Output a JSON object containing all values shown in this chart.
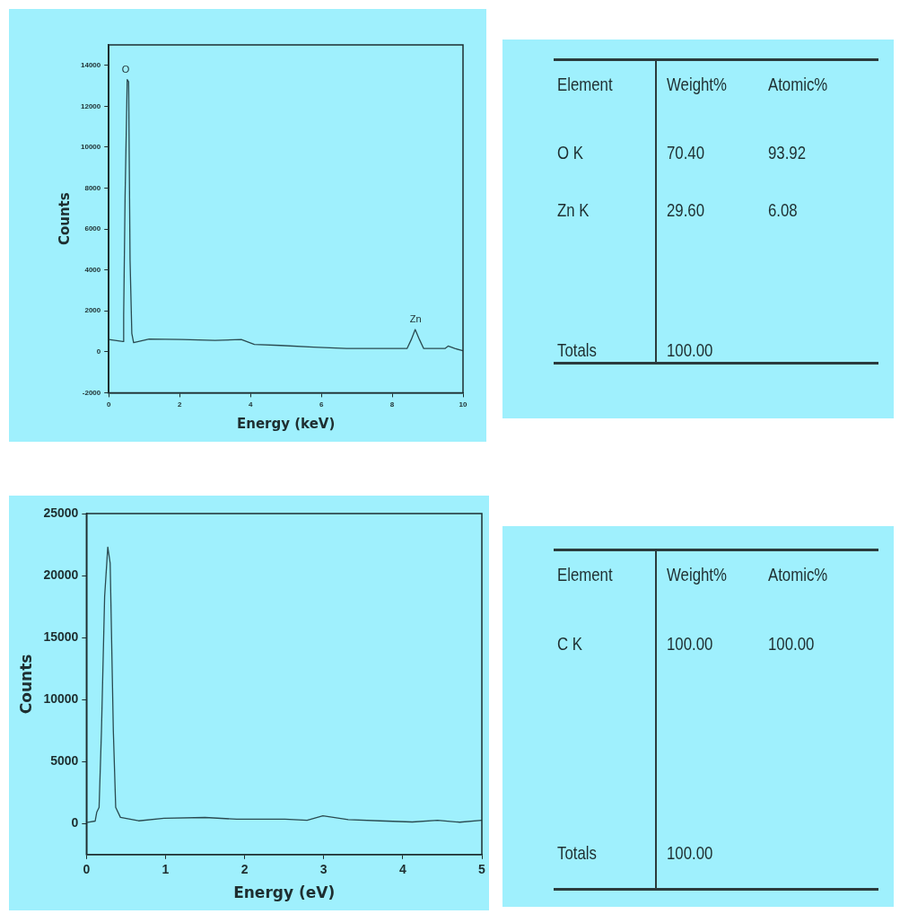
{
  "chart_data": [
    {
      "type": "line",
      "xlabel": "Energy (keV)",
      "ylabel": "Counts",
      "marker": "none",
      "xlim": [
        0,
        10
      ],
      "xticks": [
        0,
        2,
        4,
        6,
        8,
        10
      ],
      "ylim": [
        -2000,
        15000
      ],
      "yticks": [
        -2000,
        0,
        2000,
        4000,
        6000,
        8000,
        10000,
        12000,
        14000
      ],
      "x": [
        0,
        0.4,
        0.42,
        0.46,
        0.52,
        0.56,
        0.6,
        0.65,
        0.7,
        1.14,
        2.07,
        3.0,
        3.74,
        4.11,
        4.85,
        5.78,
        6.71,
        7.63,
        8.42,
        8.54,
        8.65,
        8.77,
        8.89,
        9.49,
        9.58,
        9.77,
        10
      ],
      "series": [
        {
          "color": "#2a4a50",
          "values": [
            600,
            500,
            1800,
            7600,
            13300,
            13200,
            4500,
            900,
            450,
            620,
            600,
            560,
            600,
            360,
            310,
            230,
            160,
            160,
            160,
            600,
            1090,
            600,
            160,
            160,
            280,
            160,
            50
          ]
        }
      ],
      "annotations": [
        {
          "text": "O",
          "x": 0.52,
          "y": 13300
        },
        {
          "text": "Zn",
          "x": 8.65,
          "y": 1090
        }
      ]
    },
    {
      "type": "other",
      "ylabel": "Element",
      "categories": [
        "O K",
        "Zn K",
        "Totals"
      ],
      "series": [
        {
          "name": "Weight%",
          "values": [
            70.4,
            29.6,
            100
          ],
          "value_labels": [
            "70.40",
            "29.60",
            "100.00"
          ]
        },
        {
          "name": "Atomic%",
          "values": [
            93.92,
            6.08,
            null
          ],
          "value_labels": [
            "93.92",
            "6.08",
            null
          ]
        }
      ]
    },
    {
      "type": "line",
      "xlabel": "Energy (eV)",
      "ylabel": "Counts",
      "marker": "none",
      "xlim": [
        0,
        5
      ],
      "xticks": [
        0,
        1,
        2,
        3,
        4,
        5
      ],
      "ylim": [
        -2500,
        25000
      ],
      "yticks": [
        0,
        5000,
        10000,
        15000,
        20000,
        25000
      ],
      "x": [
        0,
        0.11,
        0.13,
        0.16,
        0.19,
        0.23,
        0.27,
        0.3,
        0.34,
        0.37,
        0.43,
        0.66,
        0.98,
        1.5,
        1.9,
        2.51,
        2.79,
        2.99,
        3.31,
        3.71,
        4.12,
        4.44,
        4.72,
        5.0
      ],
      "series": [
        {
          "color": "#2a4a50",
          "values": [
            80,
            200,
            900,
            1300,
            7500,
            18300,
            22300,
            21000,
            7500,
            1300,
            500,
            220,
            430,
            490,
            350,
            350,
            270,
            620,
            320,
            220,
            130,
            270,
            110,
            270
          ]
        }
      ]
    },
    {
      "type": "other",
      "ylabel": "Element",
      "categories": [
        "C K",
        "Totals"
      ],
      "series": [
        {
          "name": "Weight%",
          "values": [
            100,
            100
          ],
          "value_labels": [
            "100.00",
            "100.00"
          ]
        },
        {
          "name": "Atomic%",
          "values": [
            100,
            null
          ],
          "value_labels": [
            "100.00",
            null
          ]
        }
      ]
    }
  ]
}
